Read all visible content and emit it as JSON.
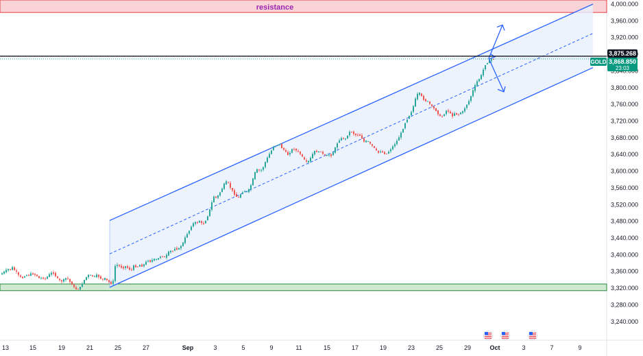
{
  "colors": {
    "channel": "#2962ff",
    "channel_fill": "#e9f0fd",
    "resistance_fill": "#f9d3d6",
    "resistance_border": "#e53945",
    "resistance_text": "#9c27b0",
    "support_fill": "#cfe9d2",
    "support_border": "#26873a",
    "up_candle": "#26a69a",
    "down_candle": "#ef5350",
    "price_tag": "#089981",
    "level_tag": "#131722"
  },
  "chart_data": {
    "type": "candlestick",
    "symbol": "GOLD",
    "ylim": [
      3220,
      4000
    ],
    "y_ticks": [
      "4,000.000",
      "3,960.000",
      "3,920.000",
      "3,880.000",
      "3,840.000",
      "3,800.000",
      "3,760.000",
      "3,720.000",
      "3,680.000",
      "3,640.000",
      "3,600.000",
      "3,560.000",
      "3,520.000",
      "3,480.000",
      "3,440.000",
      "3,400.000",
      "3,360.000",
      "3,320.000",
      "3,280.000",
      "3,240.000"
    ],
    "x_ticks": [
      "13",
      "15",
      "19",
      "21",
      "25",
      "27",
      "Sep",
      "3",
      "5",
      "9",
      "11",
      "15",
      "17",
      "19",
      "23",
      "25",
      "29",
      "Oct",
      "3",
      "7",
      "9"
    ],
    "resistance_zone": {
      "label": "resistance",
      "low": 3980,
      "high": 4000
    },
    "support_zone": {
      "low": 3314,
      "high": 3330
    },
    "horizontal_level": {
      "value": 3875.268,
      "label": "3,875.268"
    },
    "current_price": {
      "symbol": "GOLD",
      "value": 3868.85,
      "label": "3,868.850",
      "countdown": "23:03"
    },
    "channel": {
      "start_date": "Aug 22",
      "end_date": "Oct 9",
      "upper_start": 3482,
      "upper_end": 4000,
      "lower_start": 3322,
      "lower_end": 3848,
      "mid_start": 3402,
      "mid_end": 3930
    },
    "price_path": [
      [
        0,
        3352
      ],
      [
        4,
        3356
      ],
      [
        8,
        3361
      ],
      [
        12,
        3366
      ],
      [
        15,
        3363
      ],
      [
        18,
        3371
      ],
      [
        21,
        3364
      ],
      [
        24,
        3360
      ],
      [
        27,
        3352
      ],
      [
        30,
        3347
      ],
      [
        34,
        3344
      ],
      [
        38,
        3352
      ],
      [
        42,
        3350
      ],
      [
        46,
        3355
      ],
      [
        50,
        3353
      ],
      [
        54,
        3350
      ],
      [
        58,
        3343
      ],
      [
        62,
        3345
      ],
      [
        66,
        3342
      ],
      [
        70,
        3348
      ],
      [
        74,
        3356
      ],
      [
        78,
        3357
      ],
      [
        82,
        3348
      ],
      [
        86,
        3340
      ],
      [
        90,
        3336
      ],
      [
        94,
        3341
      ],
      [
        98,
        3346
      ],
      [
        102,
        3336
      ],
      [
        106,
        3328
      ],
      [
        110,
        3318
      ],
      [
        114,
        3317
      ],
      [
        118,
        3323
      ],
      [
        122,
        3336
      ],
      [
        126,
        3346
      ],
      [
        130,
        3352
      ],
      [
        134,
        3350
      ],
      [
        138,
        3347
      ],
      [
        142,
        3352
      ],
      [
        146,
        3345
      ],
      [
        150,
        3340
      ],
      [
        154,
        3344
      ],
      [
        158,
        3336
      ],
      [
        162,
        3332
      ],
      [
        165,
        3325
      ],
      [
        167,
        3372
      ],
      [
        172,
        3376
      ],
      [
        176,
        3371
      ],
      [
        180,
        3368
      ],
      [
        184,
        3373
      ],
      [
        188,
        3366
      ],
      [
        192,
        3363
      ],
      [
        196,
        3375
      ],
      [
        200,
        3369
      ],
      [
        204,
        3376
      ],
      [
        208,
        3372
      ],
      [
        212,
        3380
      ],
      [
        216,
        3387
      ],
      [
        220,
        3383
      ],
      [
        224,
        3390
      ],
      [
        228,
        3388
      ],
      [
        232,
        3392
      ],
      [
        236,
        3398
      ],
      [
        240,
        3393
      ],
      [
        244,
        3400
      ],
      [
        248,
        3410
      ],
      [
        252,
        3408
      ],
      [
        256,
        3416
      ],
      [
        260,
        3412
      ],
      [
        264,
        3420
      ],
      [
        268,
        3430
      ],
      [
        272,
        3447
      ],
      [
        276,
        3456
      ],
      [
        280,
        3470
      ],
      [
        284,
        3478
      ],
      [
        288,
        3476
      ],
      [
        292,
        3482
      ],
      [
        296,
        3471
      ],
      [
        300,
        3480
      ],
      [
        304,
        3495
      ],
      [
        308,
        3516
      ],
      [
        312,
        3540
      ],
      [
        316,
        3536
      ],
      [
        320,
        3545
      ],
      [
        324,
        3557
      ],
      [
        328,
        3571
      ],
      [
        332,
        3577
      ],
      [
        336,
        3562
      ],
      [
        340,
        3552
      ],
      [
        344,
        3541
      ],
      [
        348,
        3535
      ],
      [
        352,
        3546
      ],
      [
        356,
        3553
      ],
      [
        360,
        3550
      ],
      [
        364,
        3557
      ],
      [
        368,
        3573
      ],
      [
        372,
        3596
      ],
      [
        376,
        3605
      ],
      [
        380,
        3600
      ],
      [
        384,
        3608
      ],
      [
        388,
        3624
      ],
      [
        392,
        3637
      ],
      [
        396,
        3648
      ],
      [
        400,
        3660
      ],
      [
        404,
        3662
      ],
      [
        408,
        3666
      ],
      [
        412,
        3654
      ],
      [
        416,
        3650
      ],
      [
        420,
        3638
      ],
      [
        424,
        3646
      ],
      [
        428,
        3656
      ],
      [
        432,
        3650
      ],
      [
        436,
        3646
      ],
      [
        440,
        3638
      ],
      [
        444,
        3628
      ],
      [
        448,
        3621
      ],
      [
        452,
        3626
      ],
      [
        456,
        3640
      ],
      [
        460,
        3649
      ],
      [
        464,
        3645
      ],
      [
        468,
        3648
      ],
      [
        472,
        3640
      ],
      [
        476,
        3636
      ],
      [
        480,
        3640
      ],
      [
        484,
        3637
      ],
      [
        488,
        3650
      ],
      [
        492,
        3666
      ],
      [
        496,
        3676
      ],
      [
        500,
        3680
      ],
      [
        504,
        3676
      ],
      [
        508,
        3688
      ],
      [
        512,
        3697
      ],
      [
        516,
        3690
      ],
      [
        520,
        3686
      ],
      [
        524,
        3688
      ],
      [
        528,
        3680
      ],
      [
        532,
        3669
      ],
      [
        536,
        3674
      ],
      [
        540,
        3666
      ],
      [
        544,
        3660
      ],
      [
        548,
        3652
      ],
      [
        552,
        3644
      ],
      [
        556,
        3648
      ],
      [
        560,
        3643
      ],
      [
        564,
        3641
      ],
      [
        568,
        3648
      ],
      [
        572,
        3656
      ],
      [
        576,
        3664
      ],
      [
        580,
        3674
      ],
      [
        584,
        3686
      ],
      [
        588,
        3700
      ],
      [
        592,
        3718
      ],
      [
        596,
        3729
      ],
      [
        600,
        3740
      ],
      [
        604,
        3758
      ],
      [
        608,
        3782
      ],
      [
        612,
        3788
      ],
      [
        616,
        3778
      ],
      [
        620,
        3768
      ],
      [
        624,
        3768
      ],
      [
        628,
        3760
      ],
      [
        632,
        3752
      ],
      [
        636,
        3746
      ],
      [
        640,
        3736
      ],
      [
        644,
        3728
      ],
      [
        648,
        3736
      ],
      [
        652,
        3746
      ],
      [
        656,
        3742
      ],
      [
        660,
        3731
      ],
      [
        664,
        3740
      ],
      [
        668,
        3734
      ],
      [
        672,
        3740
      ],
      [
        676,
        3743
      ],
      [
        680,
        3756
      ],
      [
        684,
        3766
      ],
      [
        688,
        3782
      ],
      [
        692,
        3800
      ],
      [
        696,
        3814
      ],
      [
        700,
        3822
      ],
      [
        704,
        3834
      ],
      [
        707,
        3852
      ],
      [
        710,
        3858
      ],
      [
        713,
        3862
      ],
      [
        716,
        3867
      ],
      [
        719,
        3869
      ]
    ],
    "arrows": [
      "up",
      "down"
    ],
    "event_flags": [
      "flag",
      "flag",
      "flag"
    ]
  }
}
